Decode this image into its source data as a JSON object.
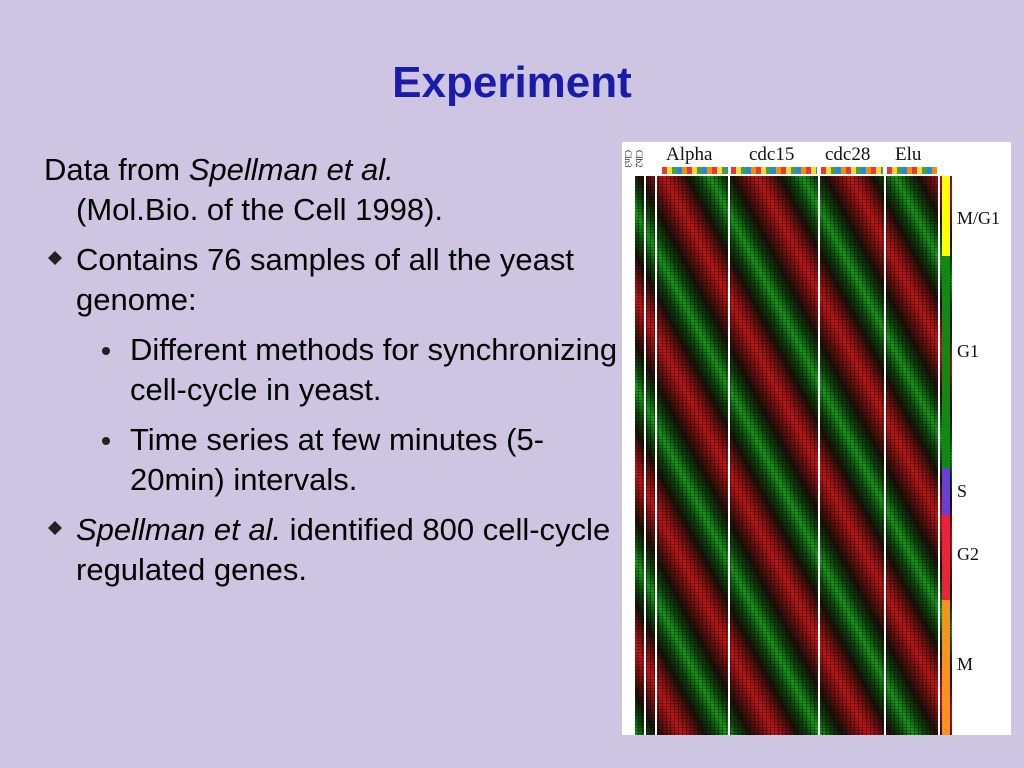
{
  "slide": {
    "title": "Experiment",
    "intro": {
      "text_a": "Data from ",
      "citation": "Spellman et al.",
      "text_b": "(Mol.Bio. of the Cell 1998)."
    },
    "bullet1": "Contains 76 samples of all the yeast genome:",
    "sub_bullets": [
      "Different methods for synchronizing cell-cycle in yeast.",
      "Time series at few minutes (5-20min) intervals."
    ],
    "bullet2": {
      "citation": "Spellman et al.",
      "text": " identified 800 cell-cycle regulated genes."
    }
  },
  "figure": {
    "rotated_labels": [
      "Cln3",
      "Clb2"
    ],
    "column_groups": [
      "Alpha",
      "cdc15",
      "cdc28",
      "Elu"
    ],
    "phases": [
      {
        "name": "M/G1",
        "color": "#ffff00"
      },
      {
        "name": "G1",
        "color": "#118811"
      },
      {
        "name": "S",
        "color": "#6a3fd8"
      },
      {
        "name": "G2",
        "color": "#e8243a"
      },
      {
        "name": "M",
        "color": "#f6921e"
      }
    ],
    "heatmap_colors": {
      "high": "#c21818",
      "low": "#1a9d1a",
      "neutral": "#1a1208"
    }
  }
}
